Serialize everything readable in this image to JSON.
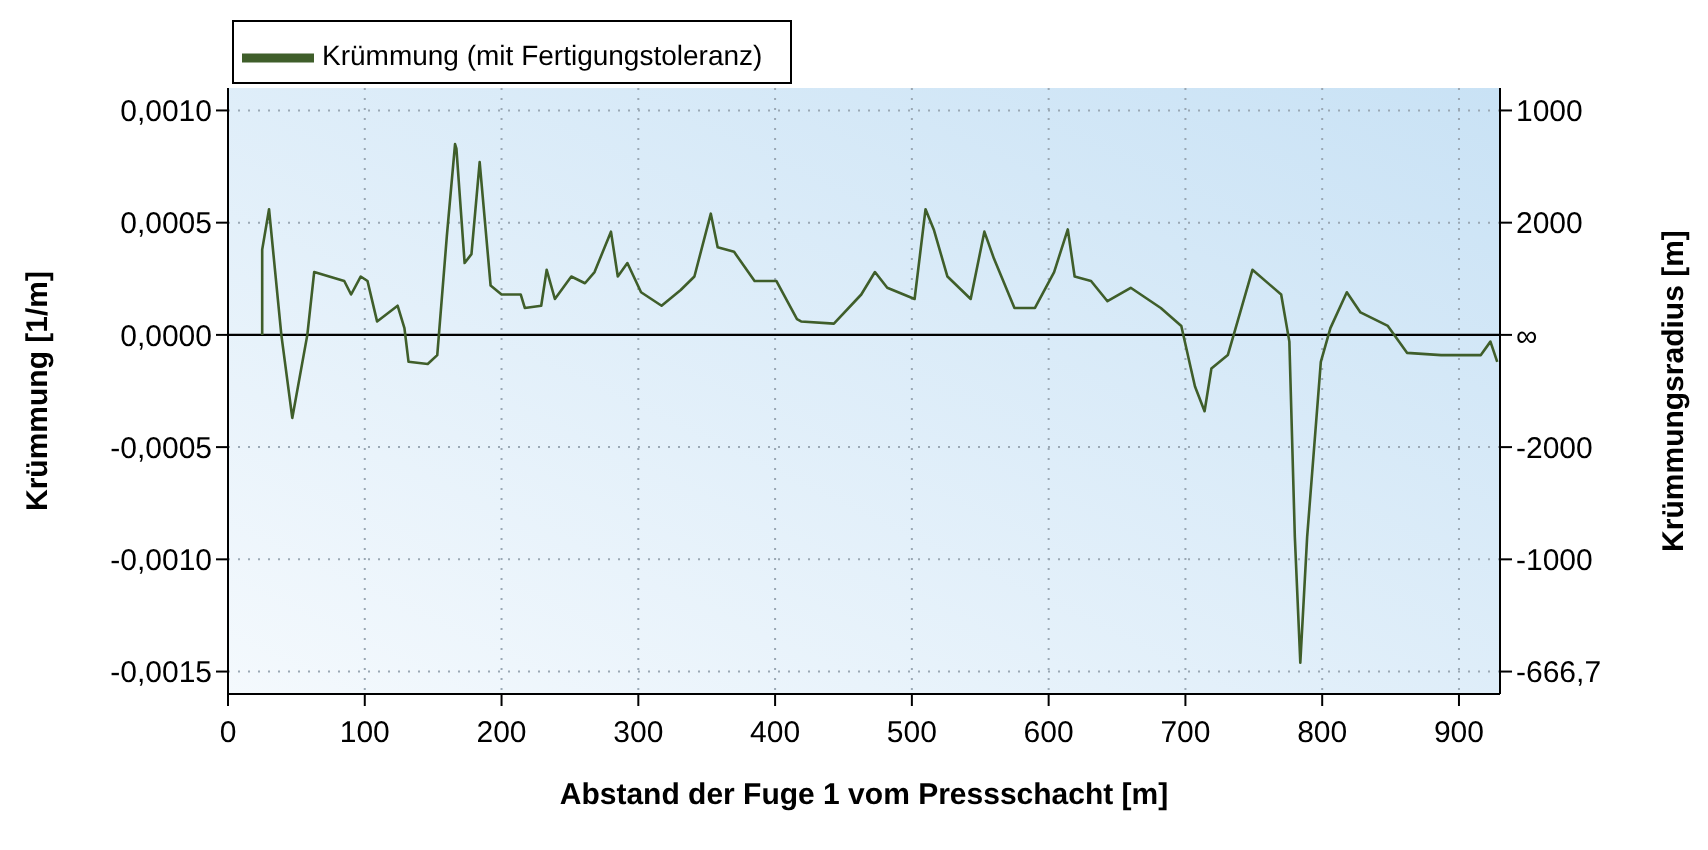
{
  "chart_data": {
    "type": "line",
    "xlabel": "Abstand der Fuge 1 vom Pressschacht [m]",
    "ylabel": "Krümmung [1/m]",
    "xlim": [
      0,
      930
    ],
    "xticks": [
      0,
      100,
      200,
      300,
      400,
      500,
      600,
      700,
      800,
      900
    ],
    "ylim": [
      -0.0016,
      0.0011
    ],
    "yticks": [
      {
        "value": 0.001,
        "label": "0,0010"
      },
      {
        "value": 0.0005,
        "label": "0,0005"
      },
      {
        "value": 0,
        "label": "0,0000"
      },
      {
        "value": -0.0005,
        "label": "-0,0005"
      },
      {
        "value": -0.001,
        "label": "-0,0010"
      },
      {
        "value": -0.0015,
        "label": "-0,0015"
      }
    ],
    "annotations": [
      "1000",
      "2000",
      "∞",
      "-2000",
      "-1000",
      "-666,7",
      "Krümmungsradius [m]"
    ],
    "grid": true,
    "legend": "top left",
    "marker": "none",
    "line_style": "solid",
    "ref_lines": [
      {
        "axis": "y",
        "value": 0,
        "color": "#000000"
      }
    ],
    "series": [
      {
        "name": "Krümmung (mit Fertigungstoleranz)",
        "color": "#3f5e2a",
        "x": [
          25,
          25,
          30,
          39,
          47,
          58,
          63,
          85,
          90,
          97,
          102,
          109,
          124,
          129,
          132,
          146,
          153,
          160,
          166,
          167,
          173,
          178,
          184,
          192,
          200,
          214,
          217,
          229,
          233,
          239,
          251,
          261,
          268,
          280,
          285,
          292,
          302,
          317,
          331,
          341,
          353,
          358,
          370,
          385,
          401,
          416,
          419,
          443,
          463,
          473,
          482,
          502,
          510,
          516,
          526,
          543,
          553,
          560,
          575,
          590,
          604,
          614,
          619,
          631,
          643,
          660,
          682,
          697,
          704,
          707,
          714,
          719,
          731,
          741,
          749,
          770,
          776,
          780,
          784,
          789,
          799,
          806,
          818,
          828,
          848,
          862,
          887,
          916,
          923,
          928
        ],
        "values": [
          0,
          0.00038,
          0.00056,
          0,
          -0.00037,
          0,
          0.00028,
          0.00024,
          0.00018,
          0.00026,
          0.00024,
          6e-05,
          0.00013,
          3e-05,
          -0.00012,
          -0.00013,
          -9e-05,
          0.00044,
          0.00085,
          0.00083,
          0.00032,
          0.00036,
          0.00077,
          0.00022,
          0.00018,
          0.00018,
          0.00012,
          0.00013,
          0.00029,
          0.00016,
          0.00026,
          0.00023,
          0.00028,
          0.00046,
          0.00026,
          0.00032,
          0.00019,
          0.00013,
          0.0002,
          0.00026,
          0.00054,
          0.00039,
          0.00037,
          0.00024,
          0.00024,
          7e-05,
          6e-05,
          5e-05,
          0.00018,
          0.00028,
          0.00021,
          0.00016,
          0.00056,
          0.00047,
          0.00026,
          0.00016,
          0.00046,
          0.00034,
          0.00012,
          0.00012,
          0.00028,
          0.00047,
          0.00026,
          0.00024,
          0.00015,
          0.00021,
          0.00012,
          4e-05,
          -0.00015,
          -0.00023,
          -0.00034,
          -0.00015,
          -9e-05,
          0.00012,
          0.00029,
          0.00018,
          -3e-05,
          -0.0009,
          -0.00146,
          -0.0009,
          -0.00012,
          3e-05,
          0.00019,
          0.0001,
          4e-05,
          -8e-05,
          -9e-05,
          -9e-05,
          -3e-05,
          -0.00012
        ]
      }
    ]
  }
}
